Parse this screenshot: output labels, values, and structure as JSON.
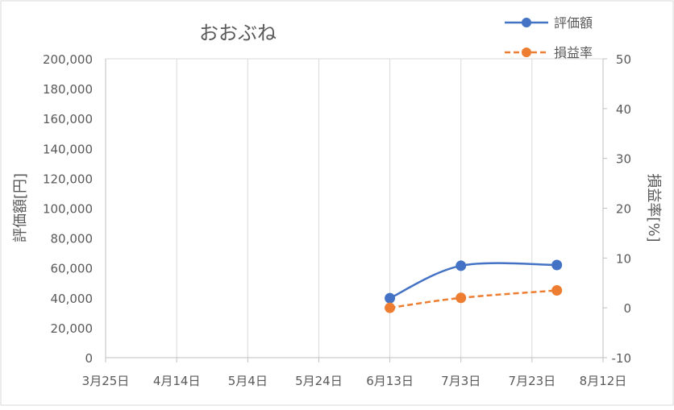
{
  "chart_data": {
    "type": "line",
    "title": "おおぶね",
    "x": [
      "6月13日",
      "7月3日",
      "7月30日"
    ],
    "x_ticks": [
      "3月25日",
      "4月14日",
      "5月4日",
      "5月24日",
      "6月13日",
      "7月3日",
      "7月23日",
      "8月12日"
    ],
    "x_tick_days": [
      0,
      20,
      40,
      60,
      80,
      100,
      120,
      140
    ],
    "x_point_days": [
      80,
      100,
      127
    ],
    "ylabel_left": "評価額[円]",
    "ylabel_right": "損益率[%]",
    "ylim_left": [
      0,
      200000
    ],
    "y_ticks_left": [
      "0",
      "20,000",
      "40,000",
      "60,000",
      "80,000",
      "100,000",
      "120,000",
      "140,000",
      "160,000",
      "180,000",
      "200,000"
    ],
    "ylim_right": [
      -10,
      50
    ],
    "y_ticks_right": [
      "-10",
      "0",
      "10",
      "20",
      "30",
      "40",
      "50"
    ],
    "grid": "vertical",
    "legend_position": "top-right",
    "series": [
      {
        "name": "評価額",
        "axis": "left",
        "color": "#4472C4",
        "style": "solid",
        "values": [
          39800,
          61500,
          62000
        ]
      },
      {
        "name": "損益率",
        "axis": "right",
        "color": "#ED7D31",
        "style": "dashed",
        "values": [
          0,
          2.0,
          3.5
        ]
      }
    ]
  }
}
